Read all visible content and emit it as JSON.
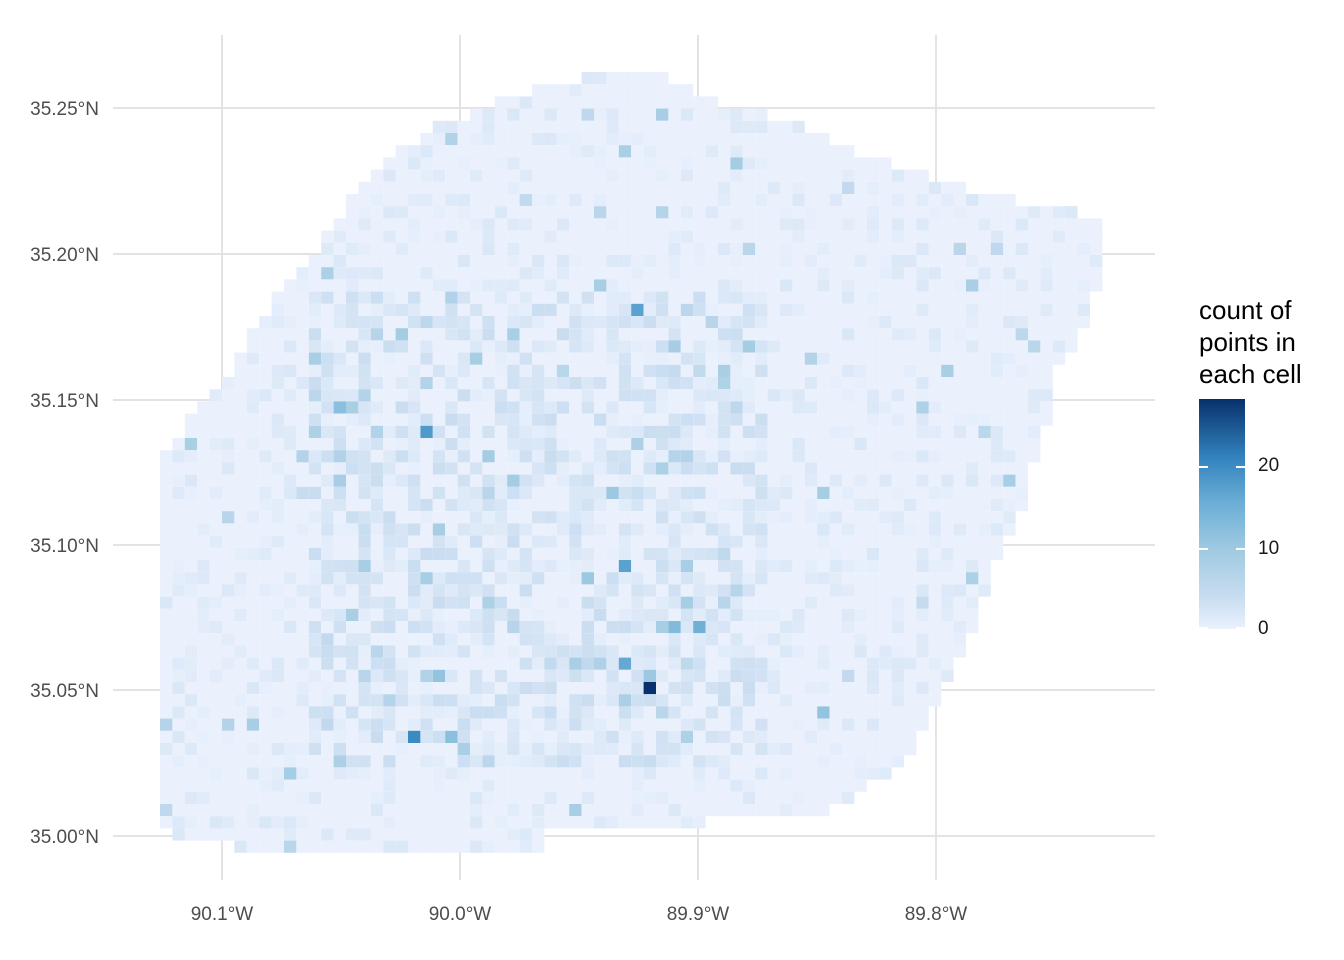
{
  "map": {
    "x_ticks": [
      "90.1°W",
      "90.0°W",
      "89.9°W",
      "89.8°W"
    ],
    "y_ticks": [
      "35.25°N",
      "35.20°N",
      "35.15°N",
      "35.10°N",
      "35.05°N",
      "35.00°N"
    ],
    "grid": true,
    "cell_fill_low": "#eaf1fd",
    "cell_fill_high": "#08306b"
  },
  "legend": {
    "title_lines": [
      "count of",
      "points in",
      "each cell"
    ],
    "ticks": [
      "20",
      "10",
      "0"
    ],
    "min": 0,
    "max": 28,
    "placement": "right"
  },
  "chart_data": {
    "type": "heatmap",
    "description_of_values": "",
    "x_ticks": [
      "90.1°W",
      "90.0°W",
      "89.9°W",
      "89.8°W"
    ],
    "y_ticks": [
      "35.25°N",
      "35.20°N",
      "35.15°N",
      "35.10°N",
      "35.05°N",
      "35.00°N"
    ],
    "xlim": [
      -90.147,
      -89.812
    ],
    "ylim": [
      34.987,
      35.276
    ],
    "highlight_cells": [
      {
        "lon": -89.92,
        "lat": 35.049,
        "count": 28
      },
      {
        "lon": -90.018,
        "lat": 35.033,
        "count": 20
      },
      {
        "lon": -90.014,
        "lat": 35.138,
        "count": 18
      },
      {
        "lon": -89.927,
        "lat": 35.181,
        "count": 17
      },
      {
        "lon": -89.931,
        "lat": 35.091,
        "count": 17
      },
      {
        "lon": -89.931,
        "lat": 35.061,
        "count": 16
      },
      {
        "lon": -89.901,
        "lat": 35.07,
        "count": 15
      },
      {
        "lon": -89.91,
        "lat": 35.07,
        "count": 13
      },
      {
        "lon": -90.048,
        "lat": 35.146,
        "count": 12
      },
      {
        "lon": -90.005,
        "lat": 35.033,
        "count": 12
      },
      {
        "lon": -90.009,
        "lat": 35.054,
        "count": 11
      },
      {
        "lon": -89.845,
        "lat": 35.041,
        "count": 11
      },
      {
        "lon": -89.918,
        "lat": 35.054,
        "count": 10
      },
      {
        "lon": -89.948,
        "lat": 35.087,
        "count": 10
      },
      {
        "lon": -89.935,
        "lat": 35.117,
        "count": 10
      },
      {
        "lon": -90.022,
        "lat": 35.171,
        "count": 9
      },
      {
        "lon": -89.978,
        "lat": 35.121,
        "count": 9
      },
      {
        "lon": -89.879,
        "lat": 35.167,
        "count": 9
      }
    ]
  }
}
